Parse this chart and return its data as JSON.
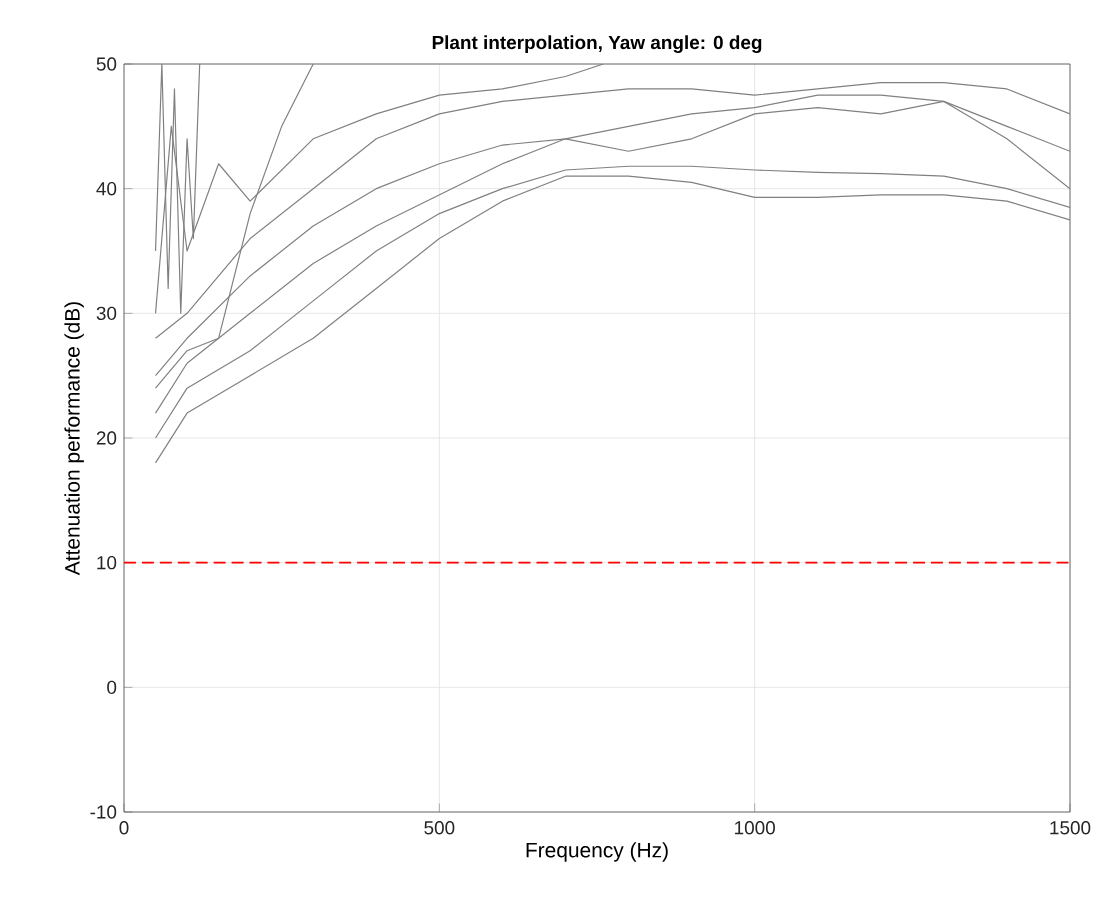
{
  "chart_data": {
    "type": "line",
    "title": "Plant interpolation, Yaw angle: 0 deg",
    "xlabel": "Frequency (Hz)",
    "ylabel": "Attenuation performance (dB)",
    "xlim": [
      0,
      1500
    ],
    "ylim": [
      -10,
      50
    ],
    "xticks": [
      0,
      500,
      1000,
      1500
    ],
    "yticks": [
      -10,
      0,
      10,
      20,
      30,
      40,
      50
    ],
    "grid": true,
    "ref_lines": [
      {
        "axis": "y",
        "value": 10,
        "color": "#ff0000",
        "line_style": "dashed"
      }
    ],
    "series": [
      {
        "color": "#808080",
        "x": [
          50,
          100,
          200,
          300,
          400,
          500,
          600,
          700,
          800,
          900,
          1000,
          1100,
          1200,
          1300,
          1400,
          1500
        ],
        "values": [
          18,
          22,
          25,
          28,
          32,
          36,
          39,
          41,
          41,
          40.5,
          39.3,
          39.3,
          39.5,
          39.5,
          39,
          37.5
        ]
      },
      {
        "color": "#808080",
        "x": [
          50,
          100,
          200,
          300,
          400,
          500,
          600,
          700,
          800,
          900,
          1000,
          1100,
          1200,
          1300,
          1400,
          1500
        ],
        "values": [
          20,
          24,
          27,
          31,
          35,
          38,
          40,
          41.5,
          41.8,
          41.8,
          41.5,
          41.3,
          41.2,
          41,
          40,
          38.5
        ]
      },
      {
        "color": "#808080",
        "x": [
          50,
          100,
          200,
          300,
          400,
          500,
          600,
          700,
          800,
          900,
          1000,
          1100,
          1200,
          1300,
          1400,
          1500
        ],
        "values": [
          22,
          26,
          30,
          34,
          37,
          39.5,
          42,
          44,
          45,
          46,
          46.5,
          47.5,
          47.5,
          47,
          44,
          40
        ]
      },
      {
        "color": "#808080",
        "x": [
          50,
          100,
          200,
          300,
          400,
          500,
          600,
          700,
          800,
          900,
          1000,
          1100,
          1200,
          1300,
          1400,
          1500
        ],
        "values": [
          25,
          28,
          33,
          37,
          40,
          42,
          43.5,
          44,
          43,
          44,
          46,
          46.5,
          46,
          47,
          45,
          43
        ]
      },
      {
        "color": "#808080",
        "x": [
          50,
          100,
          150,
          200,
          300,
          400,
          500,
          600,
          700,
          800,
          900,
          1000,
          1100,
          1200,
          1300,
          1400,
          1500
        ],
        "values": [
          28,
          30,
          33,
          36,
          40,
          44,
          46,
          47,
          47.5,
          48,
          48,
          47.5,
          48,
          48.5,
          48.5,
          48,
          46
        ]
      },
      {
        "color": "#808080",
        "x": [
          50,
          75,
          100,
          150,
          200,
          300,
          400,
          500,
          600,
          700,
          760
        ],
        "values": [
          30,
          45,
          35,
          42,
          39,
          44,
          46,
          47.5,
          48,
          49,
          50
        ]
      },
      {
        "color": "#808080",
        "x": [
          50,
          100,
          150,
          200,
          250,
          300
        ],
        "values": [
          24,
          27,
          28,
          38,
          45,
          50
        ]
      },
      {
        "color": "#808080",
        "x": [
          50,
          60,
          70,
          80,
          90,
          100,
          110,
          120
        ],
        "values": [
          35,
          50,
          32,
          48,
          30,
          44,
          36,
          50
        ]
      }
    ]
  }
}
